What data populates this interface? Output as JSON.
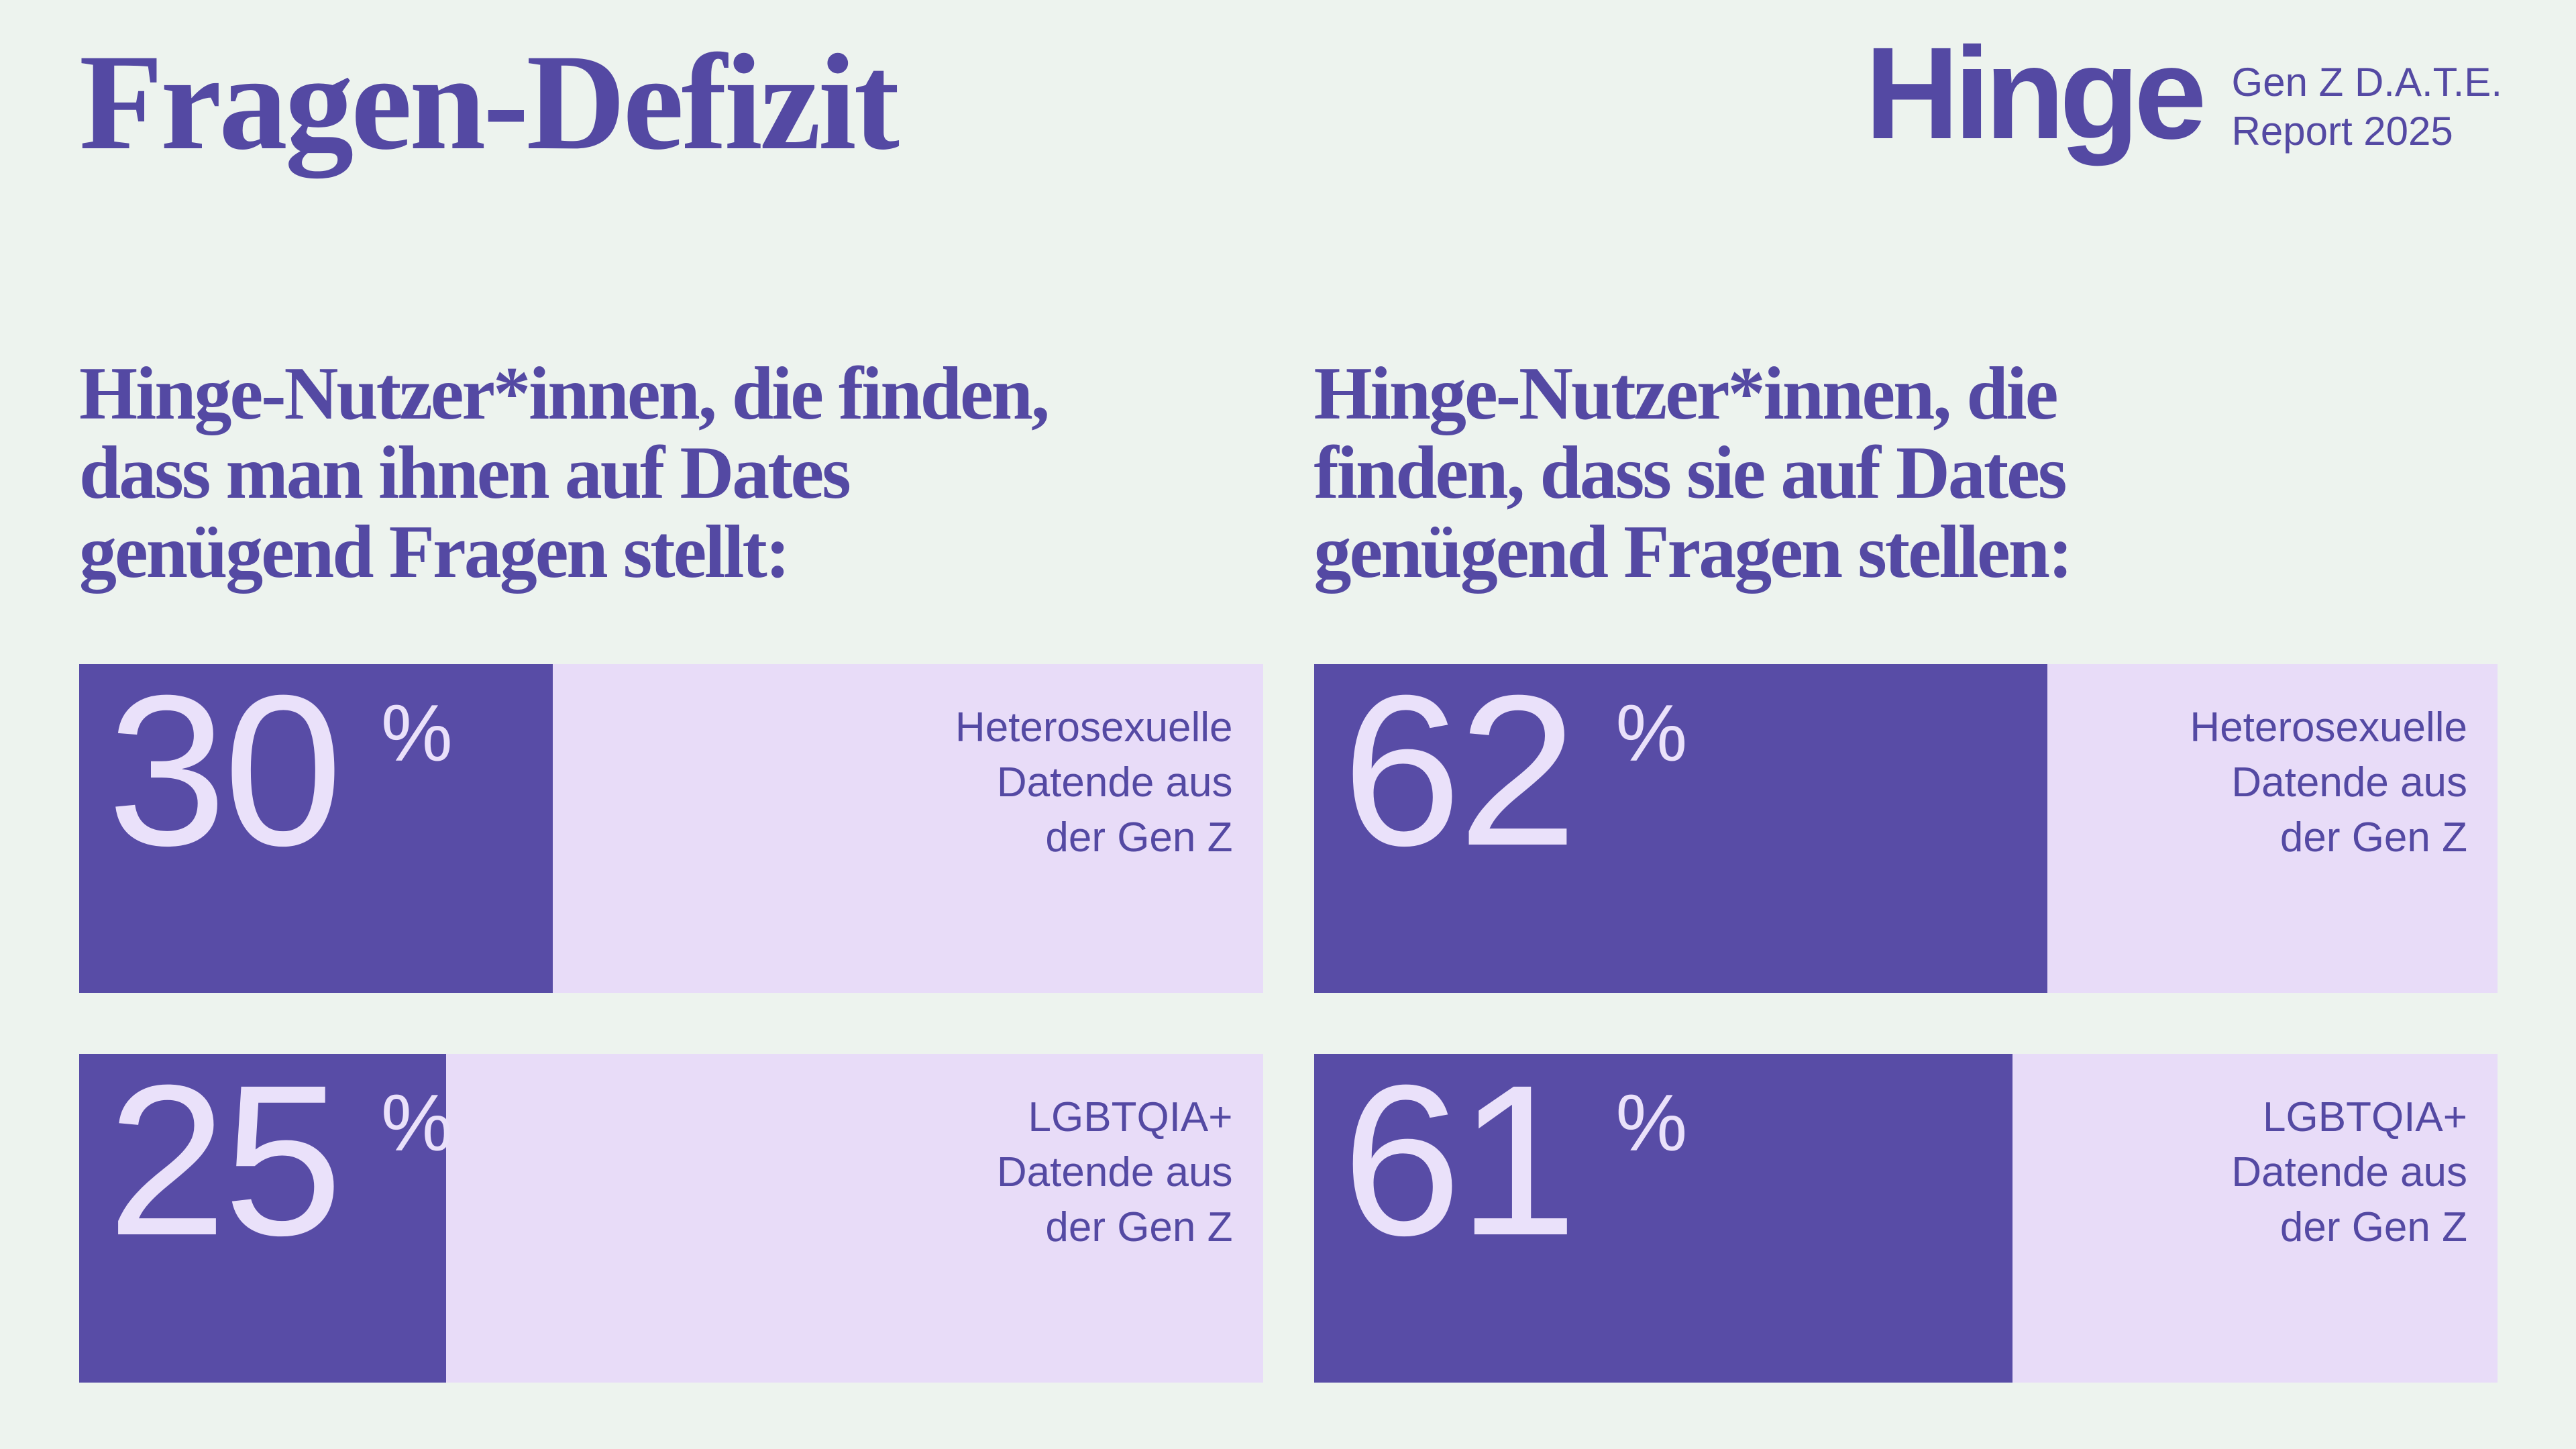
{
  "page": {
    "title": "Fragen-Defizit",
    "brand": {
      "logo_text": "Hinge",
      "report_line1": "Gen Z D.A.T.E.",
      "report_line2": "Report 2025"
    }
  },
  "colors": {
    "bg": "#EDF3EE",
    "purple": "#584CA6",
    "lavender": "#E8DCF8",
    "ink": "#5449A3",
    "digits": "#EAE1FA"
  },
  "chart_data": {
    "type": "bar",
    "title": "Fragen-Defizit",
    "unit": "%",
    "value_range": [
      0,
      100
    ],
    "layout": {
      "orientation": "horizontal",
      "value_position": "inside-left",
      "label_position": "inside-right",
      "grid": false,
      "legend": false
    },
    "groups": [
      {
        "question": "Hinge-Nutzer*innen, die finden, dass man ihnen auf Dates genügend Fragen stellt:",
        "question_lines": [
          "Hinge-Nutzer*innen, die finden,",
          "dass man ihnen auf Dates",
          "genügend Fragen stellt:"
        ],
        "bars": [
          {
            "label": "Heterosexuelle Datende aus der Gen Z",
            "label_lines": [
              "Heterosexuelle",
              "Datende aus",
              "der Gen Z"
            ],
            "value": 30,
            "unit": "%",
            "fill_percent": 40
          },
          {
            "label": "LGBTQIA+ Datende aus der Gen Z",
            "label_lines": [
              "LGBTQIA+",
              "Datende aus",
              "der Gen Z"
            ],
            "value": 25,
            "unit": "%",
            "fill_percent": 31
          }
        ]
      },
      {
        "question": "Hinge-Nutzer*innen, die finden, dass sie auf Dates genügend Fragen stellen:",
        "question_lines": [
          "Hinge-Nutzer*innen, die",
          "finden, dass sie auf Dates",
          "genügend Fragen stellen:"
        ],
        "bars": [
          {
            "label": "Heterosexuelle Datende aus der Gen Z",
            "label_lines": [
              "Heterosexuelle",
              "Datende aus",
              "der Gen Z"
            ],
            "value": 62,
            "unit": "%",
            "fill_percent": 62
          },
          {
            "label": "LGBTQIA+ Datende aus der Gen Z",
            "label_lines": [
              "LGBTQIA+",
              "Datende aus",
              "der Gen Z"
            ],
            "value": 61,
            "unit": "%",
            "fill_percent": 59
          }
        ]
      }
    ]
  }
}
